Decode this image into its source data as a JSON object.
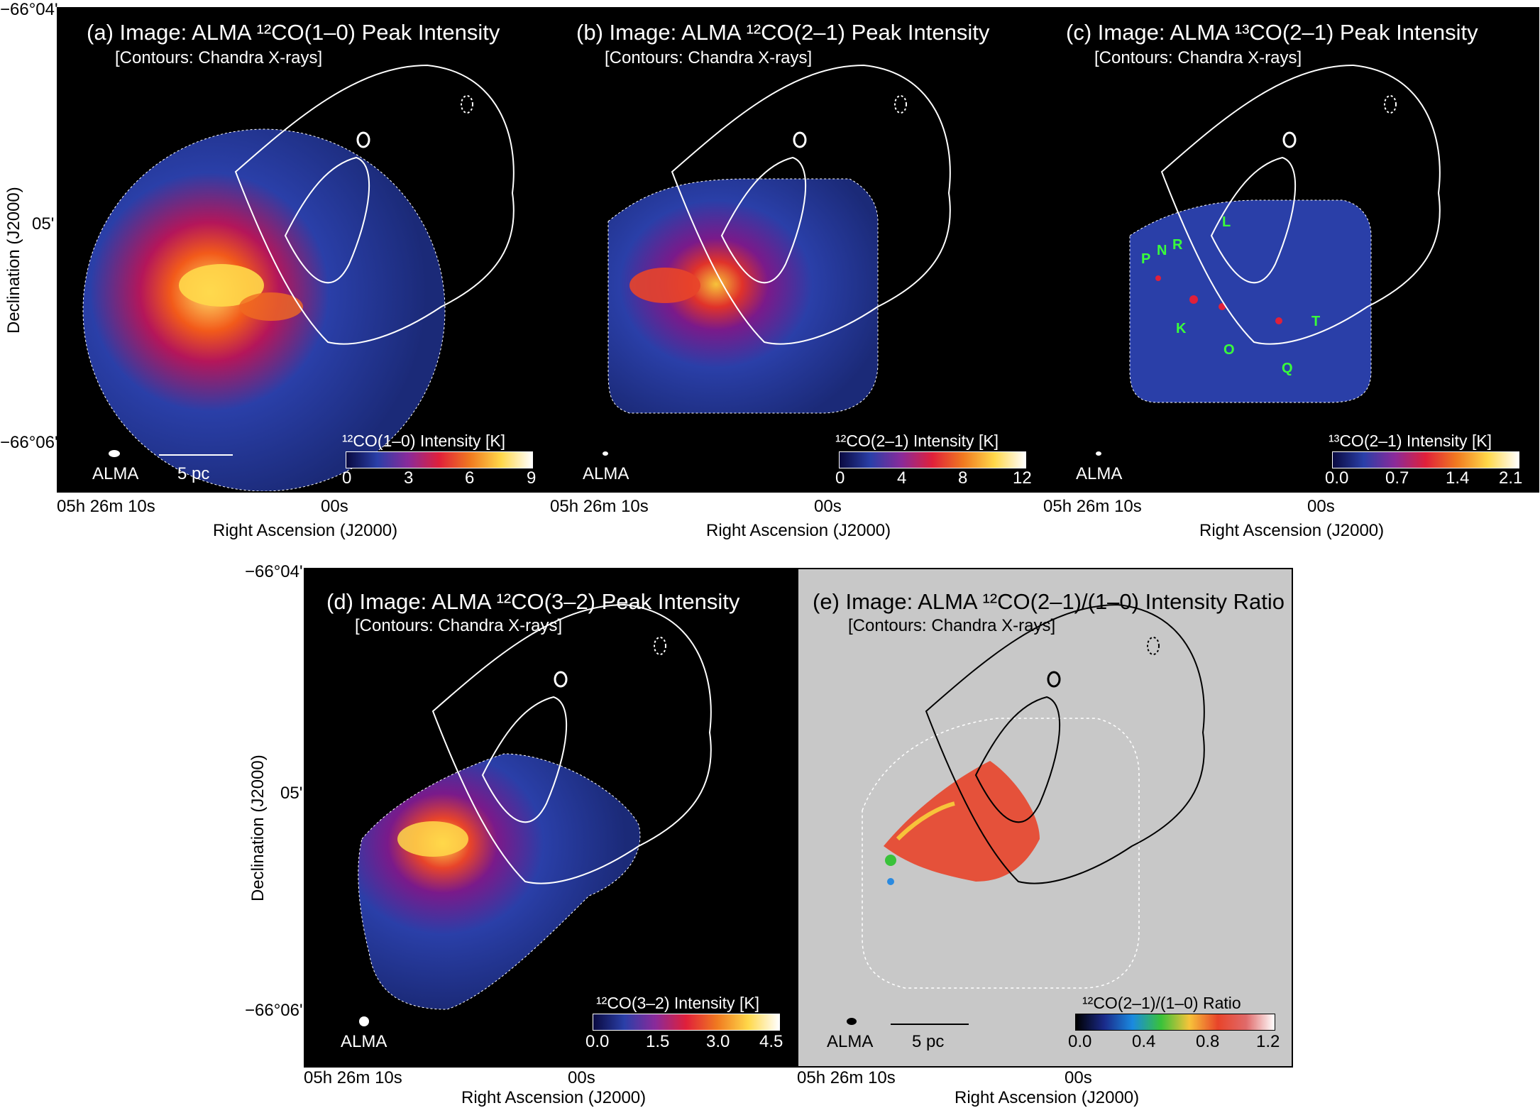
{
  "panels": {
    "a": {
      "title": "(a) Image: ALMA ¹²CO(1–0) Peak Intensity",
      "subtitle": "[Contours: Chandra X-rays]",
      "colorbar_label": "¹²CO(1–0) Intensity [K]",
      "ticks": [
        "0",
        "3",
        "6",
        "9"
      ],
      "beam_label": "ALMA",
      "scale_label": "5 pc"
    },
    "b": {
      "title": "(b) Image: ALMA ¹²CO(2–1) Peak Intensity",
      "subtitle": "[Contours: Chandra X-rays]",
      "colorbar_label": "¹²CO(2–1) Intensity [K]",
      "ticks": [
        "0",
        "4",
        "8",
        "12"
      ],
      "beam_label": "ALMA"
    },
    "c": {
      "title": "(c) Image: ALMA ¹³CO(2–1) Peak Intensity",
      "subtitle": "[Contours: Chandra X-rays]",
      "colorbar_label": "¹³CO(2–1) Intensity [K]",
      "ticks": [
        "0.0",
        "0.7",
        "1.4",
        "2.1"
      ],
      "beam_label": "ALMA",
      "sources": [
        "L",
        "R",
        "N",
        "P",
        "K",
        "O",
        "T",
        "Q"
      ]
    },
    "d": {
      "title": "(d) Image: ALMA ¹²CO(3–2) Peak Intensity",
      "subtitle": "[Contours: Chandra X-rays]",
      "colorbar_label": "¹²CO(3–2) Intensity [K]",
      "ticks": [
        "0.0",
        "1.5",
        "3.0",
        "4.5"
      ],
      "beam_label": "ALMA"
    },
    "e": {
      "title": "(e) Image: ALMA ¹²CO(2–1)/(1–0) Intensity Ratio",
      "subtitle": "[Contours: Chandra X-rays]",
      "colorbar_label": "¹²CO(2–1)/(1–0) Ratio",
      "ticks": [
        "0.0",
        "0.4",
        "0.8",
        "1.2"
      ],
      "beam_label": "ALMA",
      "scale_label": "5 pc"
    }
  },
  "axes": {
    "ylabel": "Declination (J2000)",
    "xlabel": "Right Ascension (J2000)",
    "dec_top": "−66°04'",
    "dec_mid": "05'",
    "dec_bot": "−66°06'",
    "ra_left": "05h 26m 10s",
    "ra_right": "00s"
  },
  "colors": {
    "panel_dark": "#000000",
    "panel_light": "#c8c8c8",
    "map_blue": "#2a3fa8",
    "contour": "#ffffff",
    "label_green": "#39ff3a"
  }
}
